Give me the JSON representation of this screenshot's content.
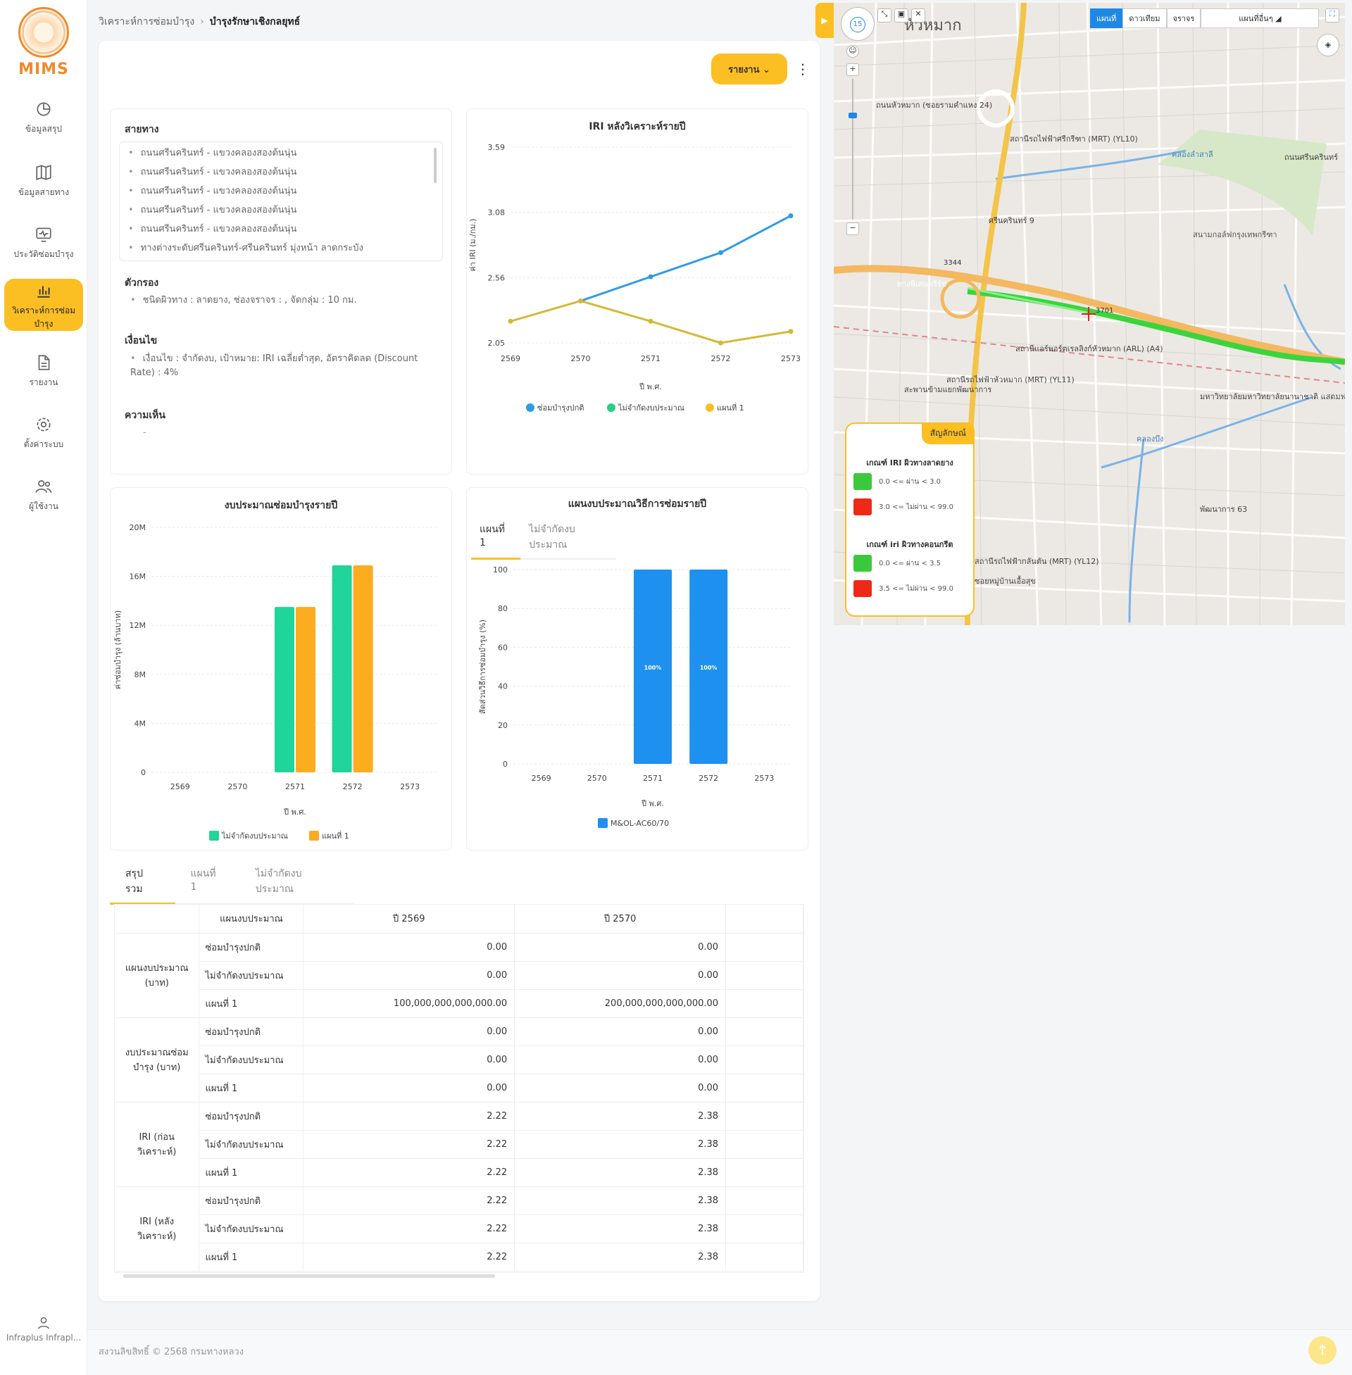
{
  "app": {
    "logo_text": "MIMS"
  },
  "nav": [
    {
      "label": "ข้อมูลสรุป",
      "icon": "pie-chart-icon"
    },
    {
      "label": "ข้อมูลสายทาง",
      "icon": "map-book-icon"
    },
    {
      "label": "ประวัติซ่อมบำรุง",
      "icon": "monitor-pulse-icon"
    },
    {
      "label": "วิเคราะห์การซ่อมบำรุง",
      "icon": "bar-chart-icon",
      "active": true
    },
    {
      "label": "รายงาน",
      "icon": "document-icon"
    },
    {
      "label": "ตั้งค่าระบบ",
      "icon": "gear-icon"
    },
    {
      "label": "ผู้ใช้งาน",
      "icon": "users-icon"
    }
  ],
  "user": {
    "name": "Infraplus Infrapl..."
  },
  "breadcrumb": {
    "parent": "วิเคราะห์การซ่อมบำรุง",
    "current": "บำรุงรักษาเชิงกลยุทธ์"
  },
  "actions": {
    "report": "รายงาน"
  },
  "info": {
    "route_title": "สายทาง",
    "routes": [
      "ถนนศรีนครินทร์ - แขวงคลองสองต้นนุ่น",
      "ถนนศรีนครินทร์ - แขวงคลองสองต้นนุ่น",
      "ถนนศรีนครินทร์ - แขวงคลองสองต้นนุ่น",
      "ถนนศรีนครินทร์ - แขวงคลองสองต้นนุ่น",
      "ถนนศรีนครินทร์ - แขวงคลองสองต้นนุ่น",
      "ทางต่างระดับศรีนครินทร์-ศรีนครินทร์ มุ่งหน้า ลาดกระบัง"
    ],
    "filter_title": "ตัวกรอง",
    "filter_text": "ชนิดผิวทาง : ลาดยาง, ช่องจราจร : , จัดกลุ่ม : 10 กม.",
    "condition_title": "เงื่อนไข",
    "condition_text": "เงื่อนไข : จำกัดงบ, เป้าหมาย: IRI เฉลี่ยต่ำสุด, อัตราคิดลด (Discount Rate) : 4%",
    "comment_title": "ความเห็น",
    "comment_text": "-"
  },
  "chart_data": [
    {
      "type": "line",
      "title": "IRI หลังวิเคราะห์รายปี",
      "xlabel": "ปี พ.ศ.",
      "ylabel": "ค่า IRI (ม./กม.)",
      "x": [
        "2569",
        "2570",
        "2571",
        "2572",
        "2573"
      ],
      "yticks": [
        "2.05",
        "2.56",
        "3.08",
        "3.59"
      ],
      "ylim": [
        2.05,
        3.59
      ],
      "series": [
        {
          "name": "ซ่อมบำรุงปกติ",
          "color": "#2f9be8",
          "values": [
            null,
            2.38,
            2.57,
            2.76,
            3.05
          ]
        },
        {
          "name": "ไม่จำกัดงบประมาณ",
          "color": "#26cf8a",
          "values": [
            null,
            null,
            null,
            null,
            null
          ]
        },
        {
          "name": "แผนที่ 1",
          "color": "#d4b937",
          "values": [
            2.22,
            2.38,
            2.22,
            2.05,
            2.14
          ]
        }
      ],
      "legend_colors": [
        "#2f9be8",
        "#26cf8a",
        "#fbbf24"
      ]
    },
    {
      "type": "bar",
      "title": "งบประมาณซ่อมบำรุงรายปี",
      "xlabel": "ปี พ.ศ.",
      "ylabel": "ค่าซ่อมบำรุง (ล้านบาท)",
      "categories": [
        "2569",
        "2570",
        "2571",
        "2572",
        "2573"
      ],
      "yticks": [
        "0",
        "4M",
        "8M",
        "12M",
        "16M",
        "20M"
      ],
      "ylim": [
        0,
        20
      ],
      "series": [
        {
          "name": "ไม่จำกัดงบประมาณ",
          "color": "#1fd59a",
          "values": [
            0,
            0,
            13.5,
            16.9,
            0
          ]
        },
        {
          "name": "แผนที่ 1",
          "color": "#fbac1f",
          "values": [
            0,
            0,
            13.5,
            16.9,
            0
          ]
        }
      ]
    },
    {
      "type": "bar",
      "title": "แผนงบประมาณวิธีการซ่อมรายปี",
      "xlabel": "ปี พ.ศ.",
      "ylabel": "สัดส่วนวิธีการซ่อมบำรุง (%)",
      "categories": [
        "2569",
        "2570",
        "2571",
        "2572",
        "2573"
      ],
      "yticks": [
        "0",
        "20",
        "40",
        "60",
        "80",
        "100"
      ],
      "ylim": [
        0,
        100
      ],
      "series": [
        {
          "name": "M&OL-AC60/70",
          "color": "#1e90f0",
          "values": [
            0,
            0,
            100,
            100,
            0
          ],
          "labels": [
            "",
            "",
            "100%",
            "100%",
            ""
          ]
        }
      ]
    }
  ],
  "plan_tabs": [
    "แผนที่ 1",
    "ไม่จำกัดงบประมาณ"
  ],
  "summary_tabs": [
    "สรุปรวม",
    "แผนที่ 1",
    "ไม่จำกัดงบประมาณ"
  ],
  "table": {
    "headers": [
      "แผนงบประมาณ",
      "ปี 2569",
      "ปี 2570"
    ],
    "groups": [
      {
        "name": "แผนงบประมาณ (บาท)",
        "rows": [
          {
            "label": "ซ่อมบำรุงปกติ",
            "v1": "0.00",
            "v2": "0.00"
          },
          {
            "label": "ไม่จำกัดงบประมาณ",
            "v1": "0.00",
            "v2": "0.00"
          },
          {
            "label": "แผนที่ 1",
            "v1": "100,000,000,000,000.00",
            "v2": "200,000,000,000,000.00"
          }
        ]
      },
      {
        "name": "งบประมาณซ่อมบำรุง (บาท)",
        "rows": [
          {
            "label": "ซ่อมบำรุงปกติ",
            "v1": "0.00",
            "v2": "0.00"
          },
          {
            "label": "ไม่จำกัดงบประมาณ",
            "v1": "0.00",
            "v2": "0.00"
          },
          {
            "label": "แผนที่ 1",
            "v1": "0.00",
            "v2": "0.00"
          }
        ]
      },
      {
        "name": "IRI (ก่อนวิเคราะห์)",
        "rows": [
          {
            "label": "ซ่อมบำรุงปกติ",
            "v1": "2.22",
            "v2": "2.38"
          },
          {
            "label": "ไม่จำกัดงบประมาณ",
            "v1": "2.22",
            "v2": "2.38"
          },
          {
            "label": "แผนที่ 1",
            "v1": "2.22",
            "v2": "2.38"
          }
        ]
      },
      {
        "name": "IRI (หลังวิเคราะห์)",
        "rows": [
          {
            "label": "ซ่อมบำรุงปกติ",
            "v1": "2.22",
            "v2": "2.38"
          },
          {
            "label": "ไม่จำกัดงบประมาณ",
            "v1": "2.22",
            "v2": "2.38"
          },
          {
            "label": "แผนที่ 1",
            "v1": "2.22",
            "v2": "2.38"
          }
        ]
      }
    ]
  },
  "footer": {
    "copyright": "สงวนลิขสิทธิ์ © 2568 กรมทางหลวง"
  },
  "map": {
    "zoom": "15",
    "layers": [
      "แผนที่",
      "ดาวเทียม",
      "จราจร"
    ],
    "layer_select": "แผนที่อื่นๆ",
    "legend_title": "สัญลักษณ์",
    "legend_sections": [
      {
        "title": "เกณฑ์ IRI ผิวทางลาดยาง",
        "items": [
          {
            "label": "0.0 <= ผ่าน < 3.0",
            "color": "#3cc83c"
          },
          {
            "label": "3.0 <= ไม่ผ่าน < 99.0",
            "color": "#f02818"
          }
        ]
      },
      {
        "title": "เกณฑ์ iri ผิวทางคอนกรีต",
        "items": [
          {
            "label": "0.0 <= ผ่าน < 3.5",
            "color": "#3cc83c"
          },
          {
            "label": "3.5 <= ไม่ผ่าน < 99.0",
            "color": "#f02818"
          }
        ]
      }
    ],
    "labels": [
      "หัวหมาก",
      "ถนนหัวหมาก (ซอยรามคำแหง 24)",
      "สถานีรถไฟฟ้าศรีกรีฑา (MRT) (YL10)",
      "ถนนศรีนครินทร์",
      "ศรีนครินทร์ 9",
      "ทางพิเศษศรีรัช",
      "สนามกอล์ฟกรุงเทพกรีฑา",
      "สถานีแอร์พอร์ตเรลลิงก์หัวหมาก (ARL) (A4)",
      "สถานีรถไฟฟ้าหัวหมาก (MRT) (YL11)",
      "สะพานข้ามแยกพัฒนาการ",
      "มหาวิทยาลัยมหาวิทยาลัยนานาชาติ แสตมฟอร์ด",
      "คลองลำสาลี",
      "คลองบึง",
      "สถานีรถไฟฟ้ากลันตัน (MRT) (YL12)",
      "ซอยหมู่บ้านเอื้อสุข",
      "พัฒนาการ 63",
      "3344",
      "3701"
    ]
  }
}
